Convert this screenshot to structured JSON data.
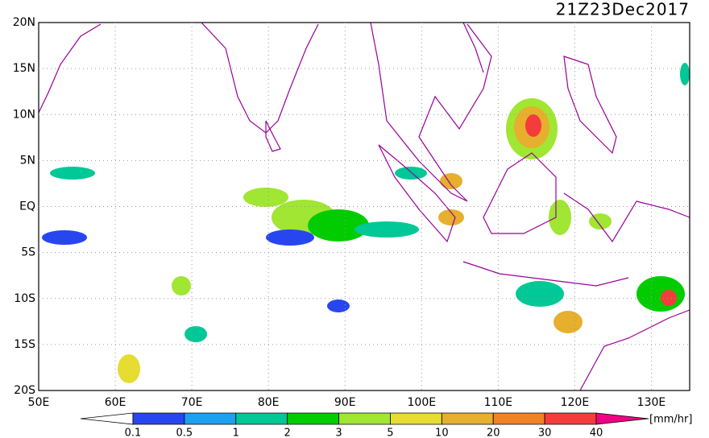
{
  "title": "21Z23Dec2017",
  "lat_labels": [
    "20N",
    "15N",
    "10N",
    "5N",
    "EQ",
    "5S",
    "10S",
    "15S",
    "20S"
  ],
  "lon_labels": [
    "50E",
    "60E",
    "70E",
    "80E",
    "90E",
    "100E",
    "110E",
    "120E",
    "130E"
  ],
  "colorbar": {
    "labels": [
      "0.1",
      "0.5",
      "1",
      "2",
      "3",
      "5",
      "10",
      "20",
      "30",
      "40"
    ],
    "colors": [
      "#ffffff",
      "#2846f0",
      "#1ea0f0",
      "#00c896",
      "#00cc00",
      "#a0e632",
      "#e6dc32",
      "#e6af2d",
      "#f08228",
      "#f53c3c",
      "#f00082"
    ],
    "unit": "[mm/hr]"
  }
}
